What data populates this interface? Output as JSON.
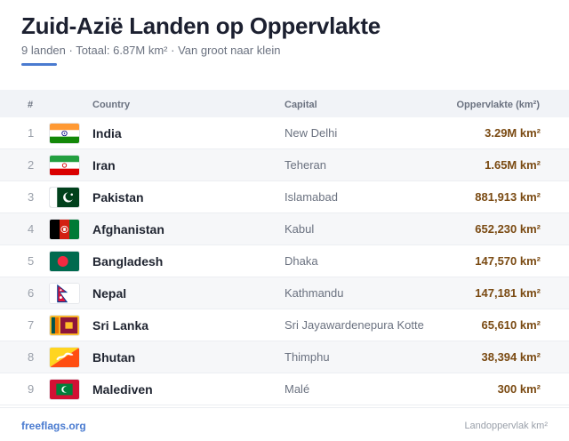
{
  "header": {
    "title": "Zuid-Azië Landen op Oppervlakte",
    "subtitle": "9 landen · Totaal: 6.87M km² · Van groot naar klein"
  },
  "table": {
    "columns": {
      "num": "#",
      "country": "Country",
      "capital": "Capital",
      "area": "Oppervlakte (km²)"
    },
    "rows": [
      {
        "rank": "1",
        "flag_icon": "india-flag-icon",
        "country": "India",
        "capital": "New Delhi",
        "area": "3.29M km²"
      },
      {
        "rank": "2",
        "flag_icon": "iran-flag-icon",
        "country": "Iran",
        "capital": "Teheran",
        "area": "1.65M km²"
      },
      {
        "rank": "3",
        "flag_icon": "pakistan-flag-icon",
        "country": "Pakistan",
        "capital": "Islamabad",
        "area": "881,913 km²"
      },
      {
        "rank": "4",
        "flag_icon": "afghanistan-flag-icon",
        "country": "Afghanistan",
        "capital": "Kabul",
        "area": "652,230 km²"
      },
      {
        "rank": "5",
        "flag_icon": "bangladesh-flag-icon",
        "country": "Bangladesh",
        "capital": "Dhaka",
        "area": "147,570 km²"
      },
      {
        "rank": "6",
        "flag_icon": "nepal-flag-icon",
        "country": "Nepal",
        "capital": "Kathmandu",
        "area": "147,181 km²"
      },
      {
        "rank": "7",
        "flag_icon": "sri-lanka-flag-icon",
        "country": "Sri Lanka",
        "capital": "Sri Jayawardenepura Kotte",
        "area": "65,610 km²"
      },
      {
        "rank": "8",
        "flag_icon": "bhutan-flag-icon",
        "country": "Bhutan",
        "capital": "Thimphu",
        "area": "38,394 km²"
      },
      {
        "rank": "9",
        "flag_icon": "maldives-flag-icon",
        "country": "Malediven",
        "capital": "Malé",
        "area": "300 km²"
      }
    ]
  },
  "footer": {
    "source": "freeflags.org",
    "note": "Landoppervlak km²"
  },
  "colors": {
    "accent": "#4a7bd0",
    "area_text": "#7a4a12",
    "header_bg": "#f1f3f7",
    "alt_row_bg": "#f6f7f9"
  }
}
